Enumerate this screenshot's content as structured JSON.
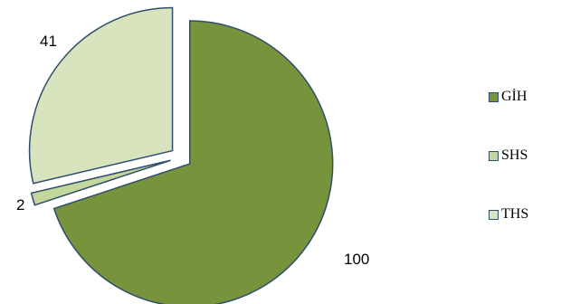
{
  "chart_data": {
    "type": "pie",
    "exploded": true,
    "slices": [
      {
        "name": "GİH",
        "value": 100,
        "label": "100",
        "color": "#77933c"
      },
      {
        "name": "SHS",
        "value": 2,
        "label": "2",
        "color": "#c3d69b"
      },
      {
        "name": "THS",
        "value": 41,
        "label": "41",
        "color": "#d7e4bd"
      }
    ],
    "slice_border_color": "#2f4d6e",
    "legend_placement": "right"
  }
}
